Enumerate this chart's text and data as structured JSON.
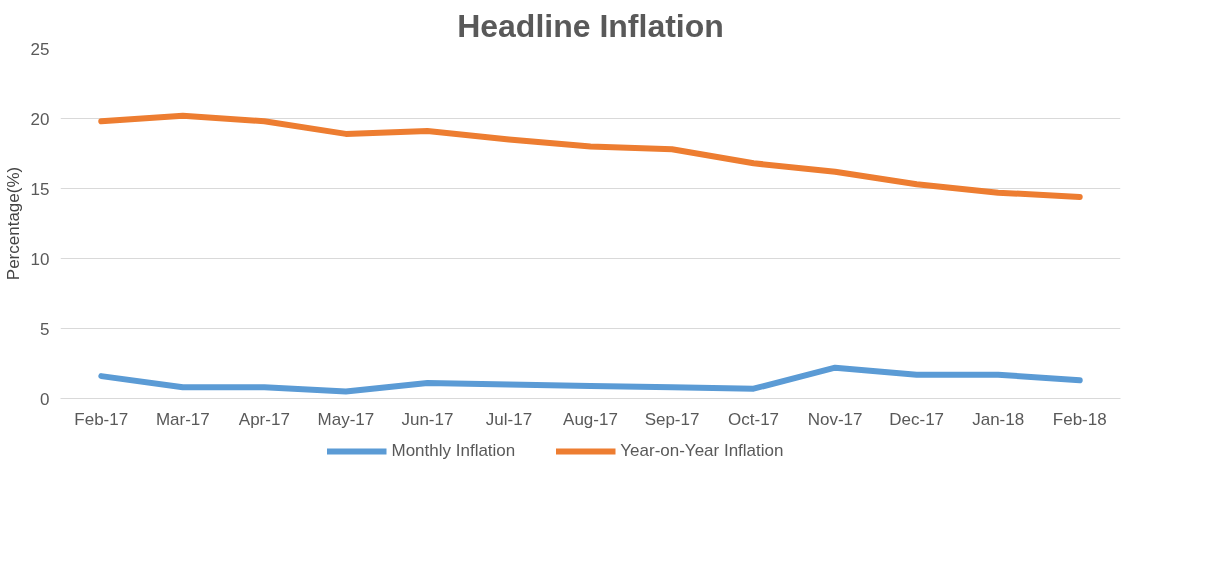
{
  "chart_data": {
    "type": "line",
    "title": "Headline Inflation",
    "ylabel": "Percentage(%)",
    "categories": [
      "Feb-17",
      "Mar-17",
      "Apr-17",
      "May-17",
      "Jun-17",
      "Jul-17",
      "Aug-17",
      "Sep-17",
      "Oct-17",
      "Nov-17",
      "Dec-17",
      "Jan-18",
      "Feb-18"
    ],
    "series": [
      {
        "name": "Monthly Inflation",
        "color": "#5b9bd5",
        "values": [
          1.6,
          0.8,
          0.8,
          0.5,
          1.1,
          1.0,
          0.9,
          0.8,
          0.7,
          2.2,
          1.7,
          1.7,
          1.3
        ]
      },
      {
        "name": "Year-on-Year Inflation",
        "color": "#ed7d31",
        "values": [
          19.8,
          20.2,
          19.8,
          18.9,
          19.1,
          18.5,
          18.0,
          17.8,
          16.8,
          16.2,
          15.3,
          14.7,
          14.4
        ]
      }
    ],
    "ylim": [
      0,
      25
    ],
    "yticks": [
      0,
      5,
      10,
      15,
      20,
      25
    ],
    "grid": "y",
    "legend": "bottom",
    "marker": "none",
    "line_style": "solid"
  }
}
